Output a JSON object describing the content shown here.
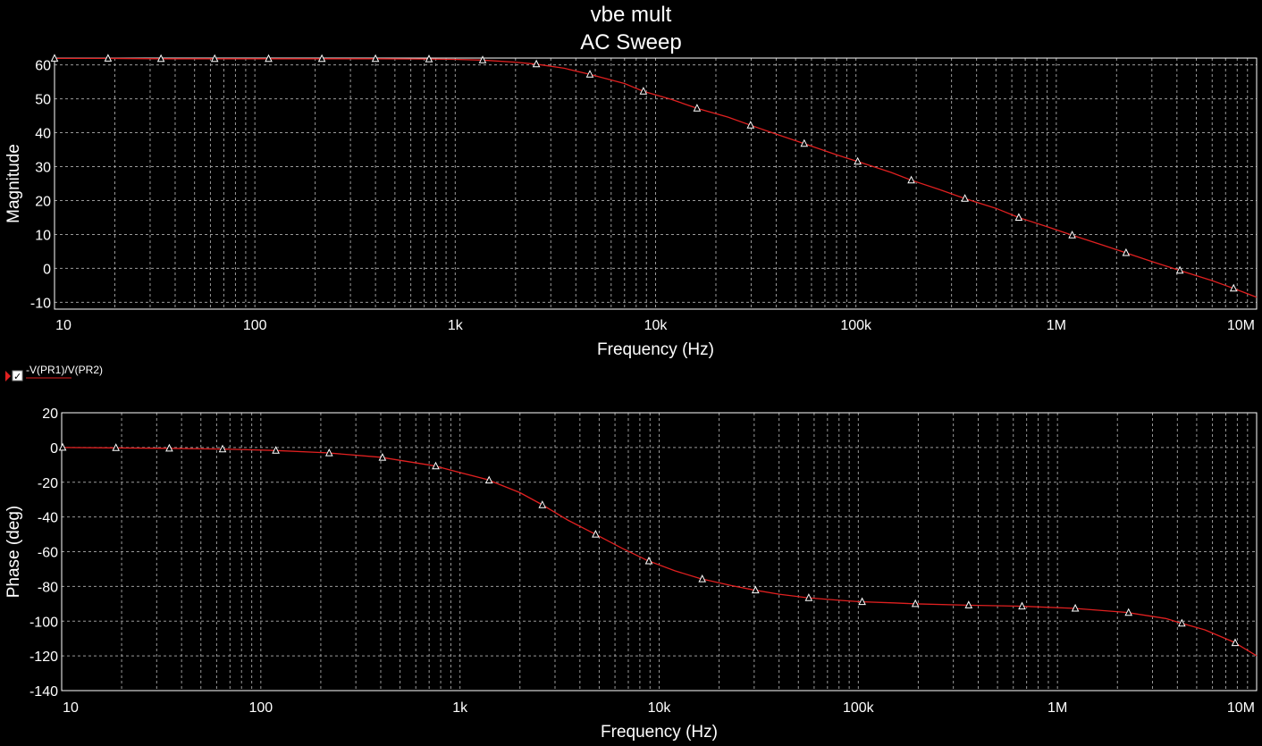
{
  "title": "vbe mult",
  "subtitle": "AC Sweep",
  "legend": {
    "label": "-V(PR1)/V(PR2)",
    "checked": true,
    "color": "#e02020"
  },
  "trace_color": "#e02020",
  "chart_data": [
    {
      "type": "line",
      "name": "magnitude",
      "xlabel": "Frequency (Hz)",
      "ylabel": "Magnitude",
      "xscale": "log",
      "xlim": [
        10,
        10000000
      ],
      "ylim": [
        -12,
        62
      ],
      "xticks": [
        10,
        100,
        1000,
        10000,
        100000,
        1000000,
        10000000
      ],
      "xtick_labels": [
        "10",
        "100",
        "1k",
        "10k",
        "100k",
        "1M",
        "10M"
      ],
      "yticks": [
        -10,
        0,
        10,
        20,
        30,
        40,
        50,
        60
      ],
      "grid": true,
      "x": [
        10,
        18.5,
        34,
        63,
        117,
        216,
        400,
        740,
        1000,
        1370,
        2000,
        2540,
        3500,
        4700,
        7000,
        8700,
        12000,
        16100,
        23000,
        29800,
        40000,
        55200,
        80000,
        102000,
        150000,
        189000,
        260000,
        350000,
        500000,
        650000,
        900000,
        1200000,
        1700000,
        2230000,
        3000000,
        4140000,
        6000000,
        7670000,
        10000000
      ],
      "y": [
        61.9,
        61.9,
        61.8,
        61.8,
        61.8,
        61.8,
        61.8,
        61.7,
        61.6,
        61.4,
        60.8,
        60.2,
        59.0,
        57.2,
        54.5,
        52.2,
        49.8,
        47.2,
        44.6,
        42.2,
        39.6,
        36.8,
        33.5,
        31.5,
        28.3,
        26.0,
        23.3,
        20.6,
        17.7,
        15.0,
        12.3,
        9.8,
        6.9,
        4.6,
        2.0,
        -0.6,
        -3.6,
        -5.9,
        -8.5
      ],
      "marker_x": [
        10,
        18.5,
        34,
        63,
        117,
        216,
        400,
        740,
        1370,
        2540,
        4700,
        8700,
        16100,
        29800,
        55200,
        102000,
        189000,
        350000,
        650000,
        1200000,
        2230000,
        4140000,
        7670000
      ]
    },
    {
      "type": "line",
      "name": "phase",
      "xlabel": "Frequency (Hz)",
      "ylabel": "Phase (deg)",
      "xscale": "log",
      "xlim": [
        10,
        10000000
      ],
      "ylim": [
        -140,
        20
      ],
      "xticks": [
        10,
        100,
        1000,
        10000,
        100000,
        1000000,
        10000000
      ],
      "xtick_labels": [
        "10",
        "100",
        "1k",
        "10k",
        "100k",
        "1M",
        "10M"
      ],
      "yticks": [
        -140,
        -120,
        -100,
        -80,
        -60,
        -40,
        -20,
        0,
        20
      ],
      "grid": true,
      "x": [
        10,
        18.5,
        34,
        63,
        117,
        216,
        400,
        740,
        1370,
        2000,
        2540,
        3500,
        4700,
        6500,
        8700,
        12000,
        16100,
        23000,
        29800,
        40000,
        55200,
        80000,
        102000,
        150000,
        189000,
        350000,
        650000,
        1200000,
        2230000,
        3500000,
        4140000,
        5500000,
        7670000,
        10000000
      ],
      "y": [
        0,
        -0.2,
        -0.5,
        -0.9,
        -1.7,
        -3.1,
        -5.6,
        -10.5,
        -18.5,
        -26,
        -32.5,
        -42,
        -49.5,
        -58,
        -65,
        -71,
        -75.5,
        -79.5,
        -82,
        -84.5,
        -86.5,
        -88,
        -88.8,
        -89.5,
        -90,
        -90.8,
        -91.4,
        -92.6,
        -95,
        -98.5,
        -101,
        -105,
        -112,
        -120
      ]
    }
  ]
}
